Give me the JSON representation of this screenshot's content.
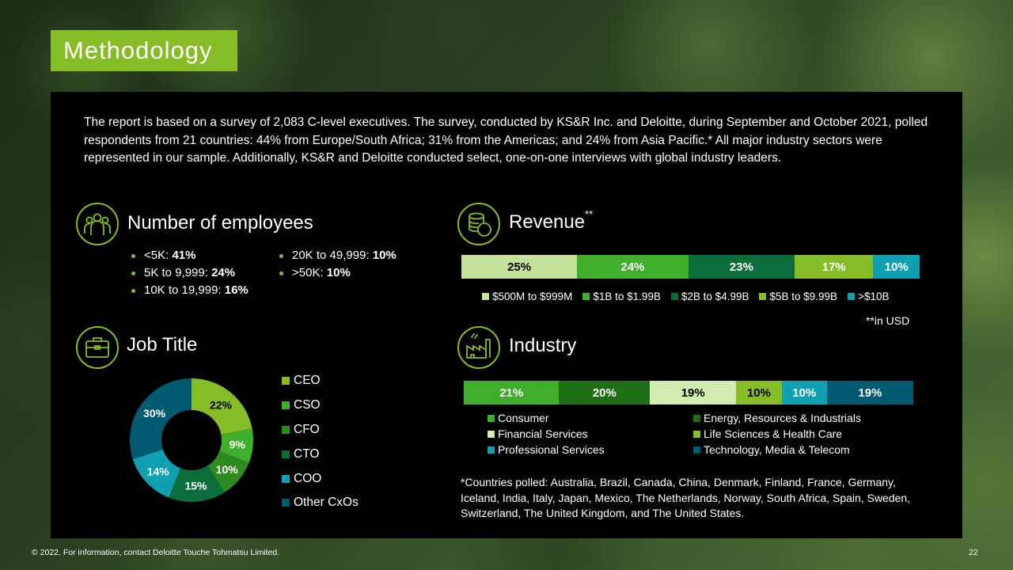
{
  "title": "Methodology",
  "intro": "The report is based on a survey of 2,083 C-level executives. The survey, conducted by KS&R Inc. and Deloitte, during September and October 2021, polled respondents from 21 countries: 44% from Europe/South Africa; 31% from the Americas; and 24% from Asia Pacific.* All major industry sectors were represented in our sample. Additionally, KS&R and Deloitte conducted select, one-on-one interviews with global industry leaders.",
  "employees": {
    "title": "Number of employees",
    "icon": "people-group-icon",
    "items": [
      {
        "label": "<5K: ",
        "value": "41%"
      },
      {
        "label": "5K to 9,999: ",
        "value": "24%"
      },
      {
        "label": "10K to 19,999: ",
        "value": "16%"
      },
      {
        "label": "20K to 49,999: ",
        "value": "10%"
      },
      {
        "label": ">50K: ",
        "value": "10%"
      }
    ]
  },
  "revenue": {
    "title": "Revenue",
    "title_sup": "**",
    "icon": "coins-icon",
    "note": "**in USD"
  },
  "job_title": {
    "title": "Job Title",
    "icon": "briefcase-icon"
  },
  "industry": {
    "title": "Industry",
    "icon": "factory-icon"
  },
  "countries_note": "*Countries polled: Australia, Brazil, Canada, China, Denmark, Finland, France, Germany, Iceland, India, Italy, Japan, Mexico, The Netherlands, Norway, South Africa, Spain, Sweden, Switzerland, The United Kingdom, and The United States.",
  "footer": "© 2022. For information, contact Deloitte Touche Tohmatsu Limited.",
  "page_number": "22",
  "colors": {
    "accent_green": "#86bc25",
    "panel": "#000000"
  },
  "chart_data": [
    {
      "type": "bar",
      "stacked": true,
      "orientation": "horizontal",
      "categories": [
        "$500M to $999M",
        "$1B to $1.99B",
        "$2B to $4.99B",
        "$5B to $9.99B",
        ">$10B"
      ],
      "values": [
        25,
        24,
        23,
        17,
        10
      ],
      "labels": [
        "25%",
        "24%",
        "23%",
        "17%",
        "10%"
      ],
      "colors": [
        "#c5e29a",
        "#3fae2a",
        "#0b6e3a",
        "#86bc25",
        "#0fa0b2"
      ],
      "dark_text": [
        true,
        false,
        false,
        false,
        false
      ],
      "legend": "bottom"
    },
    {
      "type": "pie",
      "donut": true,
      "categories": [
        "CEO",
        "CSO",
        "CFO",
        "CTO",
        "COO",
        "Other CxOs"
      ],
      "values": [
        22,
        9,
        10,
        15,
        14,
        30
      ],
      "labels": [
        "22%",
        "9%",
        "10%",
        "15%",
        "14%",
        "30%"
      ],
      "colors": [
        "#86bc25",
        "#3fae2a",
        "#2e8b1f",
        "#0b6e3a",
        "#0fa0b2",
        "#005b72"
      ],
      "legend": "right"
    },
    {
      "type": "bar",
      "stacked": true,
      "orientation": "horizontal",
      "categories": [
        "Consumer",
        "Energy, Resources & Industrials",
        "Financial Services",
        "Life Sciences & Health Care",
        "Professional Services",
        "Technology, Media & Telecom"
      ],
      "values": [
        21,
        20,
        19,
        10,
        10,
        19
      ],
      "labels": [
        "21%",
        "20%",
        "19%",
        "10%",
        "10%",
        "19%"
      ],
      "colors": [
        "#3fae2a",
        "#1f6f17",
        "#d3ecb0",
        "#86bc25",
        "#0fa0b2",
        "#005b72"
      ],
      "dark_text": [
        false,
        false,
        true,
        true,
        false,
        false
      ],
      "legend": "bottom"
    }
  ]
}
